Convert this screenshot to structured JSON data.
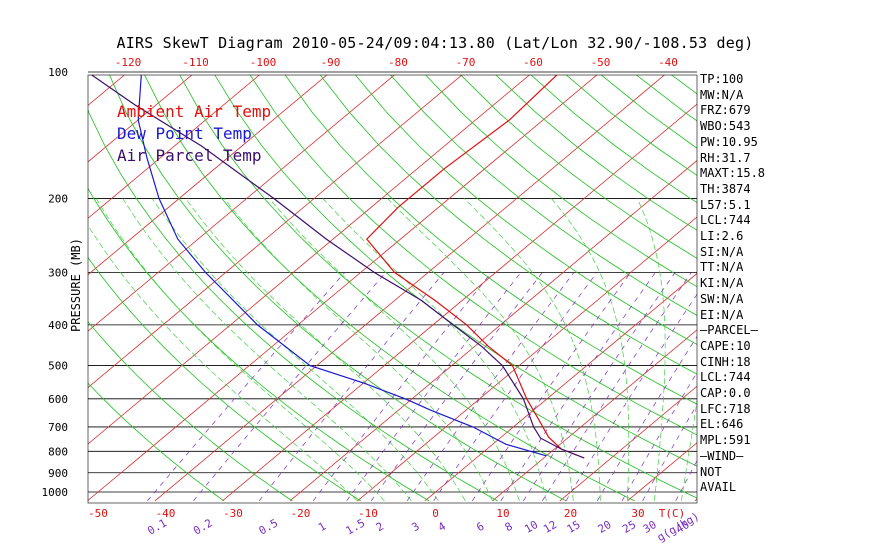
{
  "title": "AIRS SkewT Diagram 2010-05-24/09:04:13.80 (Lat/Lon 32.90/-108.53 deg)",
  "colors": {
    "ambient": "#e01010",
    "dewpoint": "#1a1ad0",
    "parcel": "#3a0f6b",
    "isotherm": "#d83030",
    "dry_adiabat": "#20c020",
    "moist_adiabat": "#40d040",
    "mixing_ratio": "#7a2fc0",
    "isobar": "#000000"
  },
  "legend": [
    {
      "label": "Ambient Air Temp",
      "color": "#e01010"
    },
    {
      "label": "Dew Point Temp",
      "color": "#1a1ad0"
    },
    {
      "label": "Air Parcel Temp",
      "color": "#3a0f6b"
    }
  ],
  "indices": [
    "TP:100",
    "MW:N/A",
    "FRZ:679",
    "WBO:543",
    "PW:10.95",
    "RH:31.7",
    "MAXT:15.8",
    "TH:3874",
    "L57:5.1",
    "LCL:744",
    "LI:2.6",
    "SI:N/A",
    "TT:N/A",
    "KI:N/A",
    "SW:N/A",
    "EI:N/A",
    "—PARCEL—",
    "CAPE:10",
    "CINH:18",
    "LCL:744",
    "CAP:0.0",
    "LFC:718",
    "EL:646",
    "MPL:591",
    "—WIND—",
    "NOT",
    "AVAIL"
  ],
  "chart_data": {
    "type": "line",
    "title": "AIRS SkewT Diagram 2010-05-24/09:04:13.80 (Lat/Lon 32.90/-108.53 deg)",
    "ylabel": "PRESSURE (MB)",
    "xlabel": "T(C)",
    "y_scale": "log",
    "ylim": [
      1000,
      100
    ],
    "xlim_bottom": [
      -52,
      37
    ],
    "xlim_top": [
      -128,
      -39
    ],
    "pressure_ticks": [
      100,
      200,
      300,
      400,
      500,
      600,
      700,
      800,
      900,
      1000
    ],
    "bottom_temp_ticks": [
      -50,
      -40,
      -30,
      -20,
      -10,
      0,
      10,
      20,
      30
    ],
    "top_temp_ticks": [
      -120,
      -110,
      -100,
      -90,
      -80,
      -70,
      -60,
      -50,
      -40
    ],
    "mixing_ratio_labels": [
      "0.1",
      "0.2",
      "0.5",
      "1",
      "1.5",
      "2",
      "3",
      "4",
      "6",
      "8",
      "10",
      "12",
      "15",
      "20",
      "25",
      "30",
      "40",
      "g(g/kg)"
    ],
    "mixing_ratio_values": [
      0.1,
      0.2,
      0.5,
      1,
      1.5,
      2,
      3,
      4,
      6,
      8,
      10,
      12,
      15,
      20,
      25,
      30,
      40
    ],
    "series": [
      {
        "name": "Ambient Air Temp",
        "color": "#e01010",
        "points": [
          [
            830,
            16
          ],
          [
            790,
            11
          ],
          [
            740,
            7
          ],
          [
            680,
            3
          ],
          [
            600,
            -3
          ],
          [
            500,
            -11
          ],
          [
            450,
            -18
          ],
          [
            400,
            -25
          ],
          [
            350,
            -34
          ],
          [
            300,
            -45
          ],
          [
            250,
            -55
          ],
          [
            210,
            -56
          ],
          [
            170,
            -56
          ],
          [
            130,
            -55
          ],
          [
            100,
            -56
          ]
        ]
      },
      {
        "name": "Dew Point Temp",
        "color": "#1a1ad0",
        "points": [
          [
            820,
            10
          ],
          [
            770,
            2
          ],
          [
            700,
            -6
          ],
          [
            640,
            -15
          ],
          [
            600,
            -21
          ],
          [
            550,
            -30
          ],
          [
            500,
            -41
          ],
          [
            400,
            -56
          ],
          [
            300,
            -73
          ],
          [
            250,
            -83
          ],
          [
            200,
            -93
          ],
          [
            160,
            -102
          ],
          [
            130,
            -110
          ],
          [
            100,
            -118
          ]
        ]
      },
      {
        "name": "Air Parcel Temp",
        "color": "#3a0f6b",
        "points": [
          [
            830,
            16
          ],
          [
            790,
            11
          ],
          [
            744,
            6
          ],
          [
            700,
            3
          ],
          [
            600,
            -3.5
          ],
          [
            500,
            -12.5
          ],
          [
            450,
            -19
          ],
          [
            400,
            -27
          ],
          [
            350,
            -36
          ],
          [
            300,
            -48
          ],
          [
            250,
            -61
          ],
          [
            200,
            -76
          ],
          [
            150,
            -96
          ],
          [
            120,
            -113
          ],
          [
            100,
            -126
          ]
        ]
      }
    ]
  }
}
